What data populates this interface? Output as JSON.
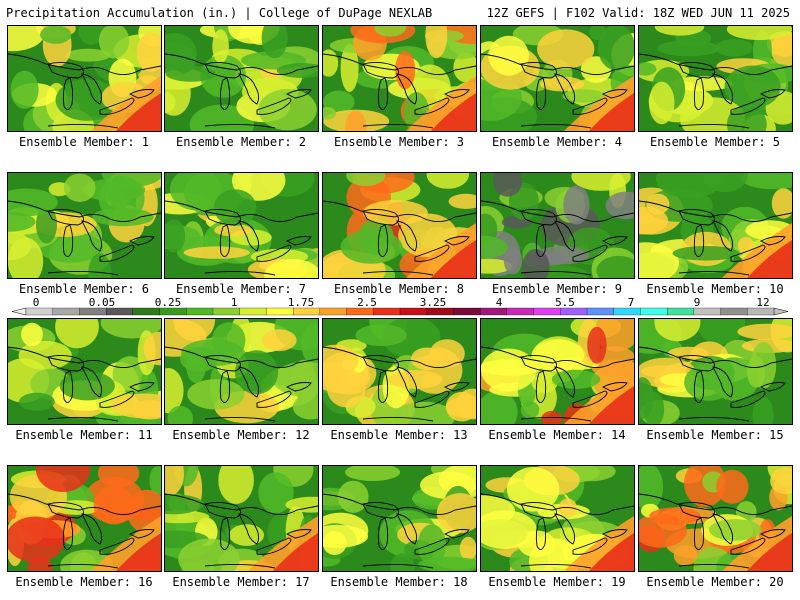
{
  "header": {
    "title": "Precipitation Accumulation (in.) | College of DuPage NEXLAB",
    "valid": "12Z GEFS | F102 Valid: 18Z WED JUN 11 2025"
  },
  "colorbar": {
    "tick_labels": [
      "0",
      "0.05",
      "0.25",
      "1",
      "1.75",
      "2.5",
      "3.25",
      "4",
      "5.5",
      "7",
      "9",
      "12"
    ],
    "colors": [
      "#d0d0d0",
      "#a8a8a8",
      "#808080",
      "#585858",
      "#2c7a18",
      "#3a9a20",
      "#52b828",
      "#8bd030",
      "#d8ee30",
      "#ffff40",
      "#ffd23c",
      "#ffa02a",
      "#ff6a1a",
      "#e8301a",
      "#c8101a",
      "#a00a1a",
      "#7a0a3a",
      "#a01878",
      "#c82ab8",
      "#e040f0",
      "#a060ff",
      "#6090ff",
      "#30d8ff",
      "#40ffe8",
      "#40e0a0",
      "#c0c0c0",
      "#909090",
      "#b8b8b8"
    ]
  },
  "panels": [
    {
      "label": "Ensemble Member: 1",
      "style": "green"
    },
    {
      "label": "Ensemble Member: 2",
      "style": "green"
    },
    {
      "label": "Ensemble Member: 3",
      "style": "wet"
    },
    {
      "label": "Ensemble Member: 4",
      "style": "green"
    },
    {
      "label": "Ensemble Member: 5",
      "style": "green"
    },
    {
      "label": "Ensemble Member: 6",
      "style": "green"
    },
    {
      "label": "Ensemble Member: 7",
      "style": "green"
    },
    {
      "label": "Ensemble Member: 8",
      "style": "wet"
    },
    {
      "label": "Ensemble Member: 9",
      "style": "dry"
    },
    {
      "label": "Ensemble Member: 10",
      "style": "green"
    },
    {
      "label": "Ensemble Member: 11",
      "style": "green"
    },
    {
      "label": "Ensemble Member: 12",
      "style": "green"
    },
    {
      "label": "Ensemble Member: 13",
      "style": "green"
    },
    {
      "label": "Ensemble Member: 14",
      "style": "wet"
    },
    {
      "label": "Ensemble Member: 15",
      "style": "green"
    },
    {
      "label": "Ensemble Member: 16",
      "style": "wet"
    },
    {
      "label": "Ensemble Member: 17",
      "style": "green"
    },
    {
      "label": "Ensemble Member: 18",
      "style": "green"
    },
    {
      "label": "Ensemble Member: 19",
      "style": "green"
    },
    {
      "label": "Ensemble Member: 20",
      "style": "wet"
    }
  ]
}
